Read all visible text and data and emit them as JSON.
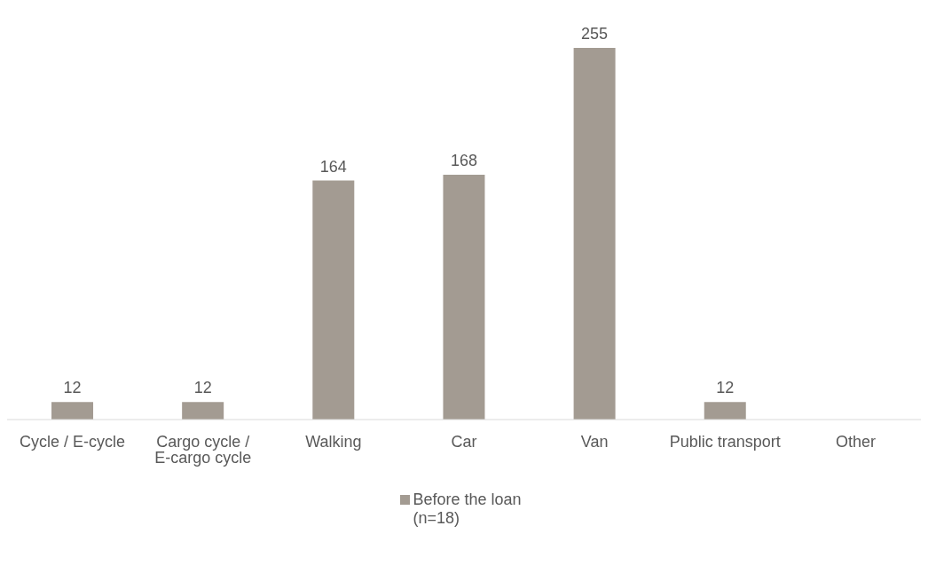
{
  "chart_data": {
    "type": "bar",
    "categories": [
      "Cycle / E-cycle",
      "Cargo cycle / E-cargo cycle",
      "Walking",
      "Car",
      "Van",
      "Public transport",
      "Other"
    ],
    "series": [
      {
        "name": "Before the loan (n=18)",
        "color": "#a39b92",
        "values": [
          12,
          12,
          164,
          168,
          255,
          12,
          null
        ]
      }
    ],
    "data_labels": true,
    "legend": "bottom"
  }
}
